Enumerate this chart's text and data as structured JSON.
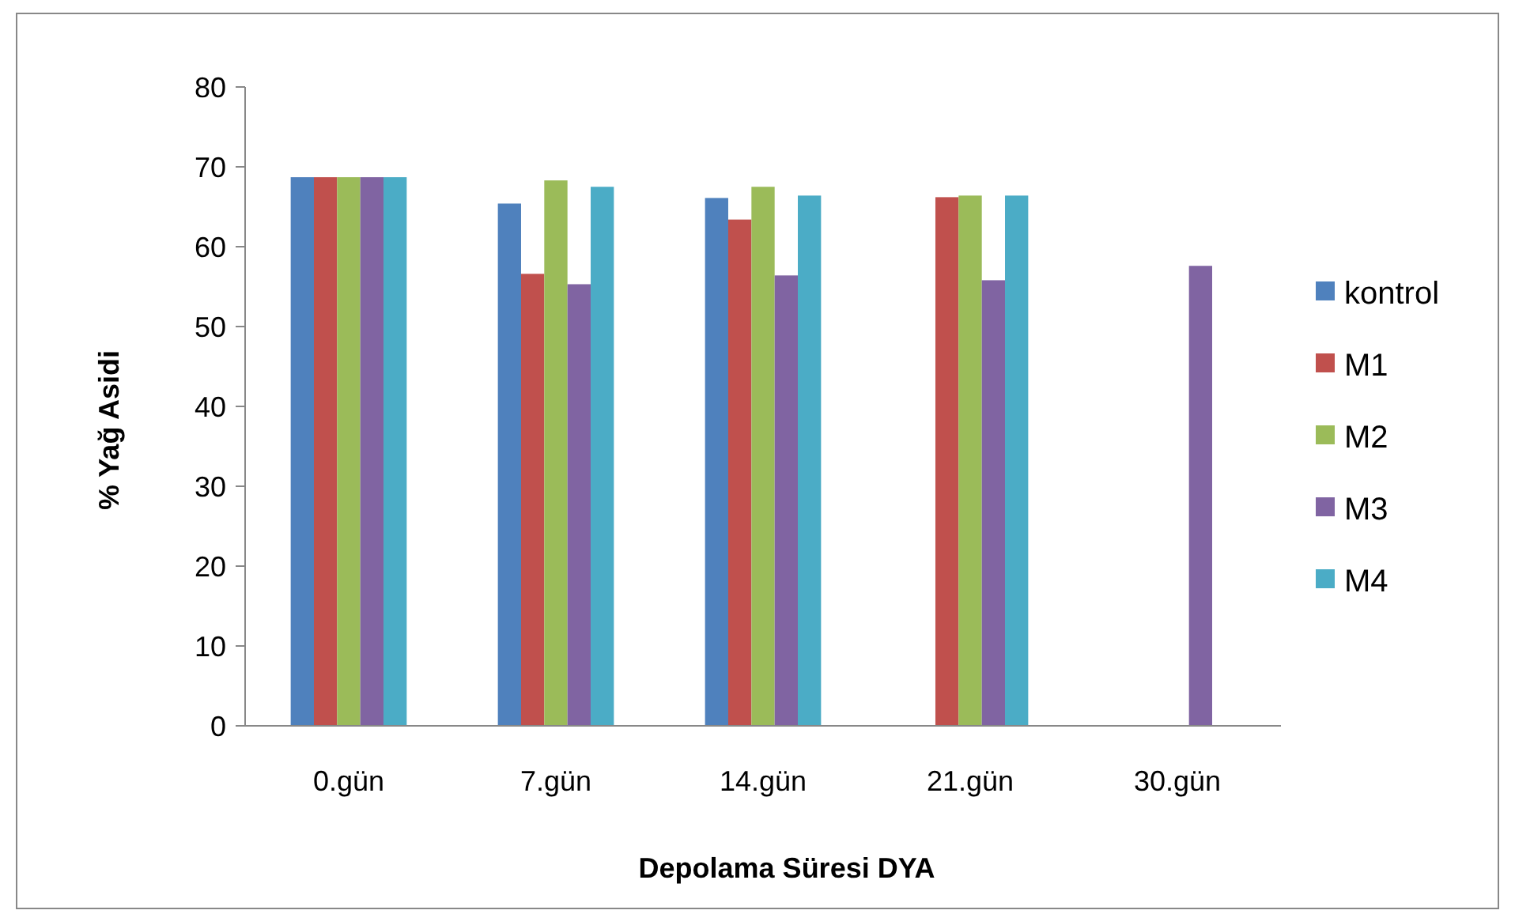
{
  "chart_data": {
    "type": "bar",
    "xlabel": "Depolama Süresi DYA",
    "ylabel": "% Yağ Asidi",
    "categories": [
      "0.gün",
      "7.gün",
      "14.gün",
      "21.gün",
      "30.gün"
    ],
    "series": [
      {
        "name": "kontrol",
        "color": "#4f81bd",
        "values": [
          68.7,
          65.4,
          66.1,
          null,
          null
        ]
      },
      {
        "name": "M1",
        "color": "#c0504d",
        "values": [
          68.7,
          56.6,
          63.4,
          66.2,
          null
        ]
      },
      {
        "name": "M2",
        "color": "#9bbb59",
        "values": [
          68.7,
          68.3,
          67.5,
          66.4,
          null
        ]
      },
      {
        "name": "M3",
        "color": "#8064a2",
        "values": [
          68.7,
          55.3,
          56.4,
          55.8,
          57.6
        ]
      },
      {
        "name": "M4",
        "color": "#4bacc6",
        "values": [
          68.7,
          67.5,
          66.4,
          66.4,
          null
        ]
      }
    ],
    "ylim": [
      0,
      80
    ],
    "yticks": [
      0,
      10,
      20,
      30,
      40,
      50,
      60,
      70,
      80
    ],
    "grid": false,
    "legend": "right"
  }
}
